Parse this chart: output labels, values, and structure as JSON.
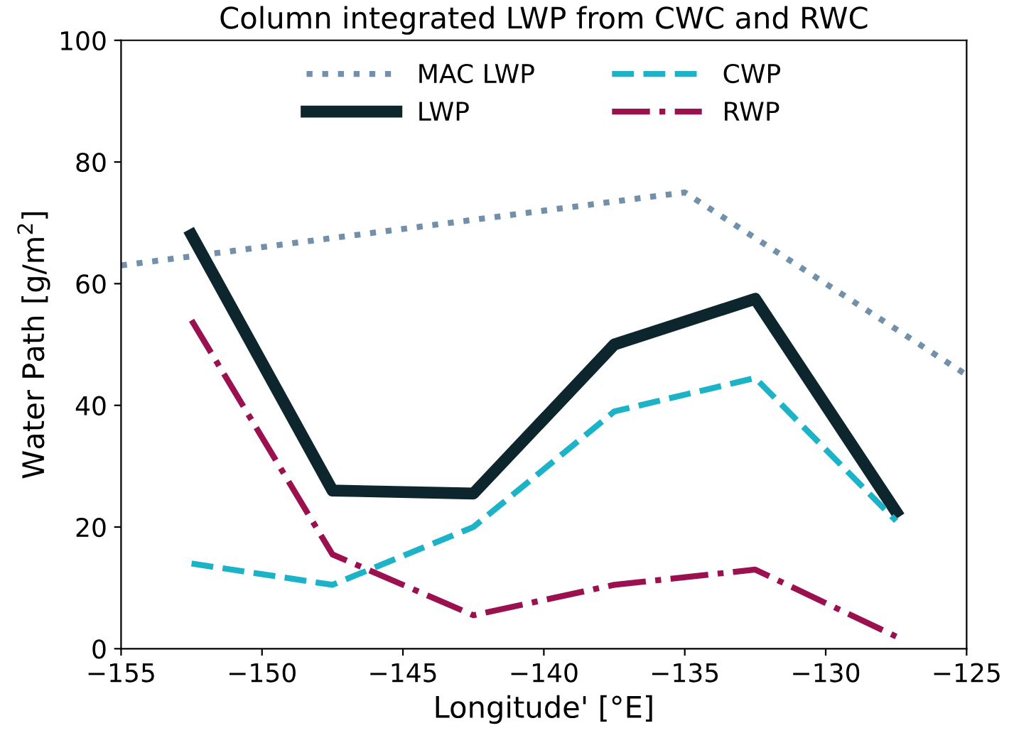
{
  "chart_data": {
    "type": "line",
    "title": "Column integrated LWP from CWC and RWC",
    "xlabel": "Longitude' [°E]",
    "ylabel": "Water Path [g/m$^{2}$]",
    "xlim": [
      -155,
      -125
    ],
    "xticks": [
      -155,
      -150,
      -145,
      -140,
      -135,
      -130,
      -125
    ],
    "ylim": [
      0,
      100
    ],
    "yticks": [
      0,
      20,
      40,
      60,
      80,
      100
    ],
    "legend": "top",
    "grid": false,
    "series": [
      {
        "name": "MAC LWP",
        "color": "#7290aa",
        "line_style": "dotted",
        "x": [
          -155,
          -135,
          -125
        ],
        "values": [
          63,
          75,
          45
        ]
      },
      {
        "name": "LWP",
        "color": "#0d262e",
        "line_style": "solid",
        "x": [
          -152.5,
          -147.5,
          -142.5,
          -137.5,
          -132.5,
          -127.5
        ],
        "values": [
          68,
          26,
          25.5,
          50,
          57.5,
          22.5
        ]
      },
      {
        "name": "CWP",
        "color": "#1cb3c8",
        "line_style": "dashed",
        "x": [
          -152.5,
          -147.5,
          -142.5,
          -137.5,
          -132.5,
          -127.5
        ],
        "values": [
          14,
          10.5,
          20,
          39,
          44.5,
          21
        ]
      },
      {
        "name": "RWP",
        "color": "#9b1150",
        "line_style": "dashdot",
        "x": [
          -152.5,
          -147.5,
          -142.5,
          -137.5,
          -132.5,
          -127.5
        ],
        "values": [
          54,
          15.5,
          5.5,
          10.5,
          13,
          2
        ]
      }
    ]
  }
}
